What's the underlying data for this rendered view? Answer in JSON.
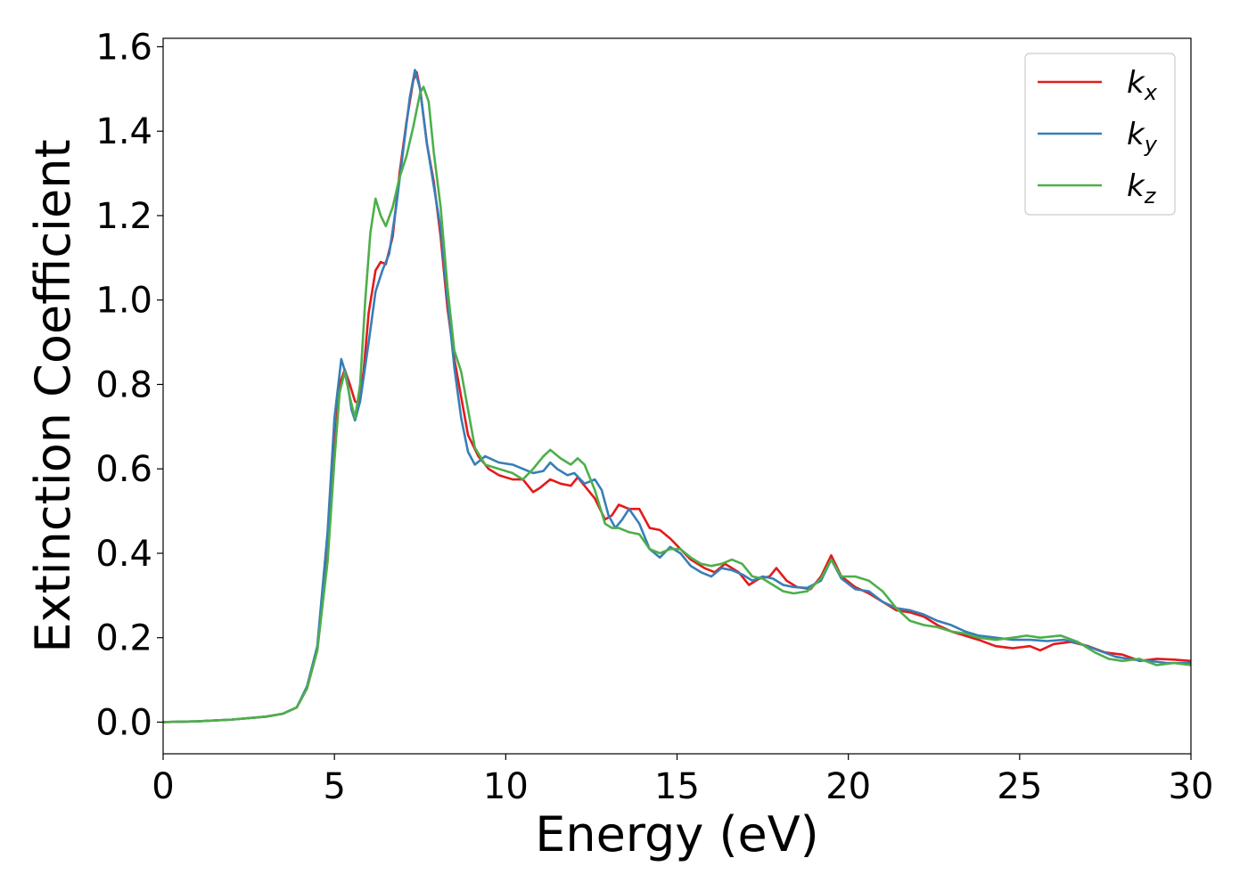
{
  "chart_data": {
    "type": "line",
    "xlabel": "Energy (eV)",
    "ylabel": "Extinction Coefficient",
    "xlim": [
      0,
      30
    ],
    "ylim": [
      -0.075,
      1.62
    ],
    "xticks": [
      0,
      5,
      10,
      15,
      20,
      25,
      30
    ],
    "yticks": [
      0.0,
      0.2,
      0.4,
      0.6,
      0.8,
      1.0,
      1.2,
      1.4,
      1.6
    ],
    "xtick_labels": [
      "0",
      "5",
      "10",
      "15",
      "20",
      "25",
      "30"
    ],
    "ytick_labels": [
      "0.0",
      "0.2",
      "0.4",
      "0.6",
      "0.8",
      "1.0",
      "1.2",
      "1.4",
      "1.6"
    ],
    "grid": false,
    "legend_position": "top-right",
    "series": [
      {
        "name": "k",
        "subscript": "x",
        "color": "#e41a1c",
        "points": [
          [
            0,
            0.0
          ],
          [
            1,
            0.002
          ],
          [
            2,
            0.006
          ],
          [
            3,
            0.013
          ],
          [
            3.5,
            0.02
          ],
          [
            3.9,
            0.035
          ],
          [
            4.2,
            0.08
          ],
          [
            4.5,
            0.17
          ],
          [
            4.8,
            0.4
          ],
          [
            5.0,
            0.65
          ],
          [
            5.15,
            0.8
          ],
          [
            5.3,
            0.835
          ],
          [
            5.45,
            0.8
          ],
          [
            5.6,
            0.76
          ],
          [
            5.7,
            0.755
          ],
          [
            5.85,
            0.83
          ],
          [
            6.0,
            0.97
          ],
          [
            6.2,
            1.07
          ],
          [
            6.35,
            1.09
          ],
          [
            6.5,
            1.085
          ],
          [
            6.7,
            1.15
          ],
          [
            6.9,
            1.3
          ],
          [
            7.1,
            1.42
          ],
          [
            7.3,
            1.52
          ],
          [
            7.4,
            1.54
          ],
          [
            7.5,
            1.5
          ],
          [
            7.7,
            1.37
          ],
          [
            7.9,
            1.28
          ],
          [
            8.1,
            1.15
          ],
          [
            8.3,
            0.98
          ],
          [
            8.5,
            0.86
          ],
          [
            8.7,
            0.77
          ],
          [
            8.9,
            0.68
          ],
          [
            9.2,
            0.63
          ],
          [
            9.5,
            0.6
          ],
          [
            9.8,
            0.585
          ],
          [
            10.2,
            0.575
          ],
          [
            10.5,
            0.575
          ],
          [
            10.8,
            0.545
          ],
          [
            11.0,
            0.555
          ],
          [
            11.3,
            0.575
          ],
          [
            11.6,
            0.565
          ],
          [
            11.9,
            0.56
          ],
          [
            12.1,
            0.58
          ],
          [
            12.3,
            0.56
          ],
          [
            12.6,
            0.53
          ],
          [
            12.9,
            0.48
          ],
          [
            13.1,
            0.49
          ],
          [
            13.3,
            0.515
          ],
          [
            13.6,
            0.505
          ],
          [
            13.9,
            0.505
          ],
          [
            14.2,
            0.46
          ],
          [
            14.5,
            0.455
          ],
          [
            14.8,
            0.435
          ],
          [
            15.1,
            0.41
          ],
          [
            15.4,
            0.385
          ],
          [
            15.8,
            0.365
          ],
          [
            16.1,
            0.355
          ],
          [
            16.4,
            0.375
          ],
          [
            16.8,
            0.355
          ],
          [
            17.1,
            0.325
          ],
          [
            17.4,
            0.34
          ],
          [
            17.7,
            0.345
          ],
          [
            17.9,
            0.365
          ],
          [
            18.2,
            0.335
          ],
          [
            18.5,
            0.32
          ],
          [
            18.9,
            0.315
          ],
          [
            19.2,
            0.345
          ],
          [
            19.5,
            0.395
          ],
          [
            19.8,
            0.345
          ],
          [
            20.2,
            0.32
          ],
          [
            20.6,
            0.305
          ],
          [
            21.0,
            0.285
          ],
          [
            21.4,
            0.265
          ],
          [
            21.8,
            0.26
          ],
          [
            22.2,
            0.25
          ],
          [
            22.6,
            0.23
          ],
          [
            23.0,
            0.215
          ],
          [
            23.4,
            0.205
          ],
          [
            23.8,
            0.195
          ],
          [
            24.3,
            0.18
          ],
          [
            24.8,
            0.175
          ],
          [
            25.3,
            0.18
          ],
          [
            25.6,
            0.17
          ],
          [
            26.0,
            0.185
          ],
          [
            26.5,
            0.19
          ],
          [
            27.0,
            0.18
          ],
          [
            27.5,
            0.165
          ],
          [
            28.0,
            0.16
          ],
          [
            28.5,
            0.145
          ],
          [
            29.0,
            0.15
          ],
          [
            29.5,
            0.148
          ],
          [
            30,
            0.145
          ]
        ]
      },
      {
        "name": "k",
        "subscript": "y",
        "color": "#377eb8",
        "points": [
          [
            0,
            0.0
          ],
          [
            1,
            0.002
          ],
          [
            2,
            0.006
          ],
          [
            3,
            0.013
          ],
          [
            3.5,
            0.02
          ],
          [
            3.9,
            0.035
          ],
          [
            4.2,
            0.085
          ],
          [
            4.5,
            0.18
          ],
          [
            4.8,
            0.45
          ],
          [
            5.0,
            0.72
          ],
          [
            5.2,
            0.86
          ],
          [
            5.35,
            0.82
          ],
          [
            5.5,
            0.74
          ],
          [
            5.6,
            0.715
          ],
          [
            5.75,
            0.76
          ],
          [
            6.0,
            0.9
          ],
          [
            6.2,
            1.02
          ],
          [
            6.4,
            1.07
          ],
          [
            6.6,
            1.11
          ],
          [
            6.8,
            1.22
          ],
          [
            7.0,
            1.35
          ],
          [
            7.2,
            1.48
          ],
          [
            7.35,
            1.545
          ],
          [
            7.5,
            1.5
          ],
          [
            7.7,
            1.37
          ],
          [
            7.9,
            1.27
          ],
          [
            8.1,
            1.17
          ],
          [
            8.3,
            1.0
          ],
          [
            8.5,
            0.84
          ],
          [
            8.7,
            0.72
          ],
          [
            8.9,
            0.64
          ],
          [
            9.1,
            0.61
          ],
          [
            9.4,
            0.63
          ],
          [
            9.8,
            0.615
          ],
          [
            10.2,
            0.61
          ],
          [
            10.5,
            0.6
          ],
          [
            10.8,
            0.59
          ],
          [
            11.1,
            0.595
          ],
          [
            11.3,
            0.615
          ],
          [
            11.5,
            0.6
          ],
          [
            11.8,
            0.585
          ],
          [
            12.0,
            0.59
          ],
          [
            12.3,
            0.565
          ],
          [
            12.6,
            0.575
          ],
          [
            12.8,
            0.55
          ],
          [
            13.0,
            0.49
          ],
          [
            13.2,
            0.46
          ],
          [
            13.4,
            0.48
          ],
          [
            13.6,
            0.505
          ],
          [
            13.9,
            0.47
          ],
          [
            14.2,
            0.41
          ],
          [
            14.5,
            0.39
          ],
          [
            14.8,
            0.415
          ],
          [
            15.1,
            0.4
          ],
          [
            15.4,
            0.37
          ],
          [
            15.7,
            0.355
          ],
          [
            16.0,
            0.345
          ],
          [
            16.3,
            0.365
          ],
          [
            16.6,
            0.36
          ],
          [
            16.9,
            0.35
          ],
          [
            17.2,
            0.335
          ],
          [
            17.5,
            0.345
          ],
          [
            17.8,
            0.34
          ],
          [
            18.1,
            0.325
          ],
          [
            18.4,
            0.32
          ],
          [
            18.8,
            0.318
          ],
          [
            19.2,
            0.335
          ],
          [
            19.5,
            0.385
          ],
          [
            19.8,
            0.34
          ],
          [
            20.2,
            0.315
          ],
          [
            20.6,
            0.31
          ],
          [
            21.0,
            0.285
          ],
          [
            21.4,
            0.27
          ],
          [
            21.8,
            0.265
          ],
          [
            22.2,
            0.255
          ],
          [
            22.6,
            0.24
          ],
          [
            23.0,
            0.23
          ],
          [
            23.4,
            0.215
          ],
          [
            23.8,
            0.205
          ],
          [
            24.3,
            0.2
          ],
          [
            24.8,
            0.195
          ],
          [
            25.3,
            0.195
          ],
          [
            25.8,
            0.192
          ],
          [
            26.3,
            0.195
          ],
          [
            26.8,
            0.185
          ],
          [
            27.3,
            0.17
          ],
          [
            27.8,
            0.155
          ],
          [
            28.3,
            0.148
          ],
          [
            28.8,
            0.145
          ],
          [
            29.3,
            0.14
          ],
          [
            30,
            0.14
          ]
        ]
      },
      {
        "name": "k",
        "subscript": "z",
        "color": "#4daf4a",
        "points": [
          [
            0,
            0.0
          ],
          [
            1,
            0.002
          ],
          [
            2,
            0.006
          ],
          [
            3,
            0.013
          ],
          [
            3.5,
            0.02
          ],
          [
            3.9,
            0.035
          ],
          [
            4.2,
            0.08
          ],
          [
            4.5,
            0.17
          ],
          [
            4.8,
            0.38
          ],
          [
            5.0,
            0.62
          ],
          [
            5.15,
            0.78
          ],
          [
            5.3,
            0.83
          ],
          [
            5.45,
            0.77
          ],
          [
            5.6,
            0.72
          ],
          [
            5.75,
            0.8
          ],
          [
            5.9,
            1.0
          ],
          [
            6.05,
            1.16
          ],
          [
            6.2,
            1.24
          ],
          [
            6.35,
            1.2
          ],
          [
            6.5,
            1.175
          ],
          [
            6.7,
            1.22
          ],
          [
            6.9,
            1.29
          ],
          [
            7.1,
            1.34
          ],
          [
            7.3,
            1.41
          ],
          [
            7.5,
            1.49
          ],
          [
            7.6,
            1.505
          ],
          [
            7.75,
            1.47
          ],
          [
            7.9,
            1.35
          ],
          [
            8.1,
            1.22
          ],
          [
            8.3,
            1.03
          ],
          [
            8.5,
            0.88
          ],
          [
            8.7,
            0.83
          ],
          [
            8.9,
            0.74
          ],
          [
            9.1,
            0.65
          ],
          [
            9.4,
            0.61
          ],
          [
            9.8,
            0.6
          ],
          [
            10.2,
            0.59
          ],
          [
            10.5,
            0.575
          ],
          [
            10.8,
            0.6
          ],
          [
            11.1,
            0.63
          ],
          [
            11.3,
            0.645
          ],
          [
            11.6,
            0.625
          ],
          [
            11.9,
            0.61
          ],
          [
            12.1,
            0.625
          ],
          [
            12.3,
            0.61
          ],
          [
            12.6,
            0.55
          ],
          [
            12.9,
            0.47
          ],
          [
            13.1,
            0.46
          ],
          [
            13.3,
            0.46
          ],
          [
            13.6,
            0.45
          ],
          [
            13.9,
            0.445
          ],
          [
            14.2,
            0.41
          ],
          [
            14.5,
            0.4
          ],
          [
            14.8,
            0.41
          ],
          [
            15.1,
            0.41
          ],
          [
            15.4,
            0.39
          ],
          [
            15.7,
            0.375
          ],
          [
            16.0,
            0.37
          ],
          [
            16.3,
            0.375
          ],
          [
            16.6,
            0.385
          ],
          [
            16.9,
            0.375
          ],
          [
            17.2,
            0.345
          ],
          [
            17.5,
            0.34
          ],
          [
            17.8,
            0.325
          ],
          [
            18.1,
            0.31
          ],
          [
            18.4,
            0.305
          ],
          [
            18.8,
            0.31
          ],
          [
            19.2,
            0.34
          ],
          [
            19.5,
            0.385
          ],
          [
            19.8,
            0.345
          ],
          [
            20.2,
            0.345
          ],
          [
            20.6,
            0.335
          ],
          [
            21.0,
            0.31
          ],
          [
            21.4,
            0.27
          ],
          [
            21.8,
            0.24
          ],
          [
            22.2,
            0.23
          ],
          [
            22.6,
            0.225
          ],
          [
            23.0,
            0.215
          ],
          [
            23.4,
            0.21
          ],
          [
            23.8,
            0.2
          ],
          [
            24.3,
            0.195
          ],
          [
            24.8,
            0.2
          ],
          [
            25.2,
            0.205
          ],
          [
            25.6,
            0.2
          ],
          [
            26.2,
            0.205
          ],
          [
            26.7,
            0.19
          ],
          [
            27.2,
            0.165
          ],
          [
            27.6,
            0.15
          ],
          [
            28.0,
            0.145
          ],
          [
            28.5,
            0.15
          ],
          [
            29.0,
            0.135
          ],
          [
            29.5,
            0.14
          ],
          [
            30,
            0.135
          ]
        ]
      }
    ]
  }
}
